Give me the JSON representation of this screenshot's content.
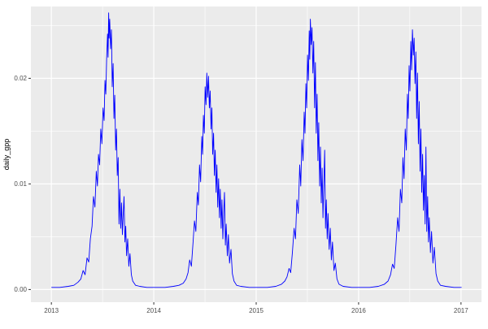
{
  "figure": {
    "background": "#FFFFFF",
    "panel_background": "#EBEBEB",
    "grid_color": "#FFFFFF",
    "line_color": "#0000FF",
    "tick_label_color": "#4D4D4D",
    "tick_mark_color": "#333333",
    "axis_title_color": "#000000"
  },
  "chart_data": {
    "type": "line",
    "title": "",
    "xlabel": "",
    "ylabel": "daily_gpp",
    "legend": "none",
    "grid": true,
    "xlim": [
      2012.8,
      2017.2
    ],
    "ylim": [
      -0.0012,
      0.0268
    ],
    "x_ticks": [
      2013,
      2014,
      2015,
      2016,
      2017
    ],
    "x_tick_labels": [
      "2013",
      "2014",
      "2015",
      "2016",
      "2017"
    ],
    "x_minor_ticks": [
      2013.5,
      2014.5,
      2015.5,
      2016.5
    ],
    "y_ticks": [
      0.0,
      0.01,
      0.02
    ],
    "y_tick_labels": [
      "0.00",
      "0.01",
      "0.02"
    ],
    "y_minor_ticks": [
      0.005,
      0.015,
      0.025
    ],
    "series": [
      {
        "name": "daily_gpp",
        "color": "#0000FF",
        "x_unit": "year + day_of_year/365",
        "years": [
          {
            "year": 2013,
            "points": [
              [
                1,
                0.0002
              ],
              [
                30,
                0.0002
              ],
              [
                60,
                0.0003
              ],
              [
                80,
                0.0004
              ],
              [
                95,
                0.0007
              ],
              [
                105,
                0.001
              ],
              [
                113,
                0.0018
              ],
              [
                120,
                0.0014
              ],
              [
                127,
                0.003
              ],
              [
                133,
                0.0026
              ],
              [
                139,
                0.0048
              ],
              [
                145,
                0.006
              ],
              [
                150,
                0.0088
              ],
              [
                155,
                0.0078
              ],
              [
                160,
                0.0112
              ],
              [
                164,
                0.0098
              ],
              [
                168,
                0.0128
              ],
              [
                172,
                0.0118
              ],
              [
                176,
                0.0152
              ],
              [
                180,
                0.0138
              ],
              [
                184,
                0.0172
              ],
              [
                188,
                0.016
              ],
              [
                191,
                0.0198
              ],
              [
                194,
                0.0185
              ],
              [
                197,
                0.0218
              ],
              [
                200,
                0.0242
              ],
              [
                202,
                0.022
              ],
              [
                204,
                0.0262
              ],
              [
                206,
                0.0238
              ],
              [
                208,
                0.0256
              ],
              [
                211,
                0.0228
              ],
              [
                214,
                0.0246
              ],
              [
                217,
                0.0192
              ],
              [
                220,
                0.0214
              ],
              [
                223,
                0.0162
              ],
              [
                226,
                0.0184
              ],
              [
                229,
                0.0132
              ],
              [
                232,
                0.0152
              ],
              [
                235,
                0.0108
              ],
              [
                238,
                0.0125
              ],
              [
                241,
                0.0062
              ],
              [
                244,
                0.0095
              ],
              [
                247,
                0.0058
              ],
              [
                250,
                0.0082
              ],
              [
                253,
                0.0052
              ],
              [
                256,
                0.0072
              ],
              [
                259,
                0.0088
              ],
              [
                262,
                0.0045
              ],
              [
                265,
                0.006
              ],
              [
                268,
                0.0032
              ],
              [
                272,
                0.0048
              ],
              [
                276,
                0.0022
              ],
              [
                280,
                0.0034
              ],
              [
                285,
                0.0014
              ],
              [
                290,
                0.0008
              ],
              [
                300,
                0.0004
              ],
              [
                315,
                0.0003
              ],
              [
                340,
                0.0002
              ],
              [
                365,
                0.0002
              ]
            ]
          },
          {
            "year": 2014,
            "points": [
              [
                1,
                0.0002
              ],
              [
                40,
                0.0002
              ],
              [
                70,
                0.0003
              ],
              [
                90,
                0.0004
              ],
              [
                105,
                0.0006
              ],
              [
                115,
                0.001
              ],
              [
                122,
                0.0016
              ],
              [
                128,
                0.0028
              ],
              [
                134,
                0.0022
              ],
              [
                140,
                0.0045
              ],
              [
                145,
                0.0065
              ],
              [
                150,
                0.0055
              ],
              [
                155,
                0.0092
              ],
              [
                159,
                0.008
              ],
              [
                163,
                0.0118
              ],
              [
                167,
                0.0102
              ],
              [
                171,
                0.0145
              ],
              [
                174,
                0.0128
              ],
              [
                177,
                0.0165
              ],
              [
                180,
                0.0148
              ],
              [
                183,
                0.0192
              ],
              [
                186,
                0.0175
              ],
              [
                189,
                0.0205
              ],
              [
                192,
                0.0182
              ],
              [
                195,
                0.0202
              ],
              [
                198,
                0.0172
              ],
              [
                201,
                0.0188
              ],
              [
                204,
                0.0152
              ],
              [
                207,
                0.0172
              ],
              [
                210,
                0.0128
              ],
              [
                213,
                0.0148
              ],
              [
                216,
                0.0108
              ],
              [
                219,
                0.0132
              ],
              [
                222,
                0.0092
              ],
              [
                225,
                0.0118
              ],
              [
                228,
                0.0078
              ],
              [
                231,
                0.0105
              ],
              [
                234,
                0.0068
              ],
              [
                237,
                0.0095
              ],
              [
                240,
                0.0058
              ],
              [
                243,
                0.0085
              ],
              [
                246,
                0.0048
              ],
              [
                249,
                0.0072
              ],
              [
                252,
                0.0092
              ],
              [
                255,
                0.0042
              ],
              [
                258,
                0.0062
              ],
              [
                262,
                0.0032
              ],
              [
                266,
                0.0052
              ],
              [
                270,
                0.0025
              ],
              [
                275,
                0.0038
              ],
              [
                280,
                0.0015
              ],
              [
                286,
                0.0008
              ],
              [
                295,
                0.0004
              ],
              [
                310,
                0.0003
              ],
              [
                340,
                0.0002
              ],
              [
                365,
                0.0002
              ]
            ]
          },
          {
            "year": 2015,
            "points": [
              [
                1,
                0.0002
              ],
              [
                40,
                0.0002
              ],
              [
                70,
                0.0003
              ],
              [
                90,
                0.0005
              ],
              [
                102,
                0.0008
              ],
              [
                110,
                0.0012
              ],
              [
                117,
                0.002
              ],
              [
                123,
                0.0016
              ],
              [
                129,
                0.0035
              ],
              [
                135,
                0.0058
              ],
              [
                140,
                0.0048
              ],
              [
                145,
                0.0085
              ],
              [
                150,
                0.0072
              ],
              [
                155,
                0.0118
              ],
              [
                159,
                0.0098
              ],
              [
                163,
                0.0142
              ],
              [
                167,
                0.0122
              ],
              [
                171,
                0.0168
              ],
              [
                174,
                0.0148
              ],
              [
                177,
                0.0195
              ],
              [
                180,
                0.0172
              ],
              [
                183,
                0.0222
              ],
              [
                186,
                0.0198
              ],
              [
                189,
                0.0245
              ],
              [
                191,
                0.0218
              ],
              [
                193,
                0.0256
              ],
              [
                196,
                0.0232
              ],
              [
                199,
                0.0248
              ],
              [
                202,
                0.0205
              ],
              [
                205,
                0.0235
              ],
              [
                208,
                0.0172
              ],
              [
                211,
                0.0215
              ],
              [
                214,
                0.0148
              ],
              [
                217,
                0.0185
              ],
              [
                220,
                0.0122
              ],
              [
                223,
                0.0158
              ],
              [
                226,
                0.0098
              ],
              [
                229,
                0.0135
              ],
              [
                232,
                0.0082
              ],
              [
                235,
                0.0115
              ],
              [
                238,
                0.0068
              ],
              [
                241,
                0.0098
              ],
              [
                244,
                0.0132
              ],
              [
                247,
                0.0058
              ],
              [
                250,
                0.0085
              ],
              [
                253,
                0.0048
              ],
              [
                256,
                0.0072
              ],
              [
                260,
                0.0038
              ],
              [
                264,
                0.0058
              ],
              [
                268,
                0.0028
              ],
              [
                272,
                0.0045
              ],
              [
                277,
                0.0018
              ],
              [
                282,
                0.0025
              ],
              [
                288,
                0.001
              ],
              [
                295,
                0.0005
              ],
              [
                310,
                0.0003
              ],
              [
                340,
                0.0002
              ],
              [
                365,
                0.0002
              ]
            ]
          },
          {
            "year": 2016,
            "points": [
              [
                1,
                0.0002
              ],
              [
                40,
                0.0002
              ],
              [
                70,
                0.0003
              ],
              [
                92,
                0.0005
              ],
              [
                105,
                0.0008
              ],
              [
                114,
                0.0014
              ],
              [
                121,
                0.0024
              ],
              [
                127,
                0.002
              ],
              [
                133,
                0.0042
              ],
              [
                139,
                0.0068
              ],
              [
                144,
                0.0055
              ],
              [
                149,
                0.0095
              ],
              [
                154,
                0.0082
              ],
              [
                158,
                0.0125
              ],
              [
                162,
                0.0105
              ],
              [
                166,
                0.0152
              ],
              [
                170,
                0.0132
              ],
              [
                174,
                0.0185
              ],
              [
                177,
                0.0162
              ],
              [
                180,
                0.0212
              ],
              [
                183,
                0.0188
              ],
              [
                186,
                0.0235
              ],
              [
                189,
                0.0208
              ],
              [
                192,
                0.0246
              ],
              [
                195,
                0.0222
              ],
              [
                198,
                0.0238
              ],
              [
                201,
                0.0195
              ],
              [
                204,
                0.0225
              ],
              [
                207,
                0.0162
              ],
              [
                210,
                0.0205
              ],
              [
                213,
                0.0138
              ],
              [
                216,
                0.0178
              ],
              [
                219,
                0.0112
              ],
              [
                222,
                0.0152
              ],
              [
                225,
                0.0092
              ],
              [
                228,
                0.0128
              ],
              [
                231,
                0.0075
              ],
              [
                234,
                0.0108
              ],
              [
                237,
                0.0062
              ],
              [
                240,
                0.0135
              ],
              [
                243,
                0.0055
              ],
              [
                246,
                0.0088
              ],
              [
                249,
                0.0045
              ],
              [
                252,
                0.0068
              ],
              [
                256,
                0.0035
              ],
              [
                260,
                0.0055
              ],
              [
                265,
                0.0025
              ],
              [
                270,
                0.004
              ],
              [
                276,
                0.0015
              ],
              [
                282,
                0.0008
              ],
              [
                292,
                0.0004
              ],
              [
                310,
                0.0003
              ],
              [
                340,
                0.0002
              ],
              [
                365,
                0.0002
              ]
            ]
          },
          {
            "year": 2017,
            "points": [
              [
                1,
                0.0002
              ]
            ]
          }
        ]
      }
    ]
  }
}
